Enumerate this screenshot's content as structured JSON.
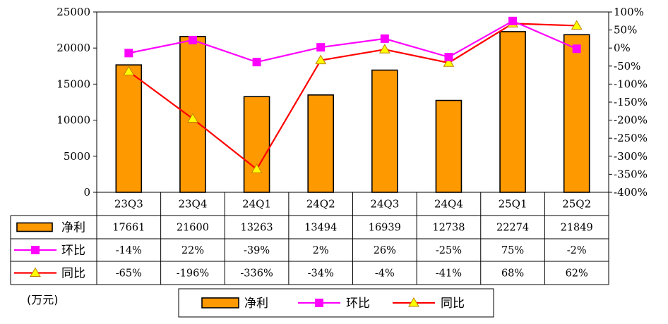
{
  "chart_data": {
    "type": "bar+line",
    "categories": [
      "23Q3",
      "23Q4",
      "24Q1",
      "24Q2",
      "24Q3",
      "24Q4",
      "25Q1",
      "25Q2"
    ],
    "series": [
      {
        "name": "净利",
        "type": "bar",
        "axis": "left",
        "values": [
          17661,
          21600,
          13263,
          13494,
          16939,
          12738,
          22274,
          21849
        ],
        "color": "#FF9900"
      },
      {
        "name": "环比",
        "type": "line",
        "axis": "right",
        "values": [
          -14,
          22,
          -39,
          2,
          26,
          -25,
          75,
          -2
        ],
        "color": "#FF00FF",
        "marker": "square"
      },
      {
        "name": "同比",
        "type": "line",
        "axis": "right",
        "values": [
          -65,
          -196,
          -336,
          -34,
          -4,
          -41,
          68,
          62
        ],
        "color": "#FF0000",
        "marker": "triangle",
        "marker_color": "#FFFF00"
      }
    ],
    "table_rows": [
      [
        "17661",
        "21600",
        "13263",
        "13494",
        "16939",
        "12738",
        "22274",
        "21849"
      ],
      [
        "-14%",
        "22%",
        "-39%",
        "2%",
        "26%",
        "-25%",
        "75%",
        "-2%"
      ],
      [
        "-65%",
        "-196%",
        "-336%",
        "-34%",
        "-4%",
        "-41%",
        "68%",
        "62%"
      ]
    ],
    "left_axis": {
      "min": 0,
      "max": 25000,
      "step": 5000,
      "ticks": [
        "0",
        "5000",
        "10000",
        "15000",
        "20000",
        "25000"
      ]
    },
    "right_axis": {
      "min": -400,
      "max": 100,
      "step": 50,
      "ticks": [
        "-400%",
        "-350%",
        "-300%",
        "-250%",
        "-200%",
        "-150%",
        "-100%",
        "-50%",
        "0%",
        "50%",
        "100%"
      ]
    },
    "unit_label": "(万元)",
    "legend": [
      "净利",
      "环比",
      "同比"
    ],
    "legend_position": "bottom",
    "grid": false
  }
}
